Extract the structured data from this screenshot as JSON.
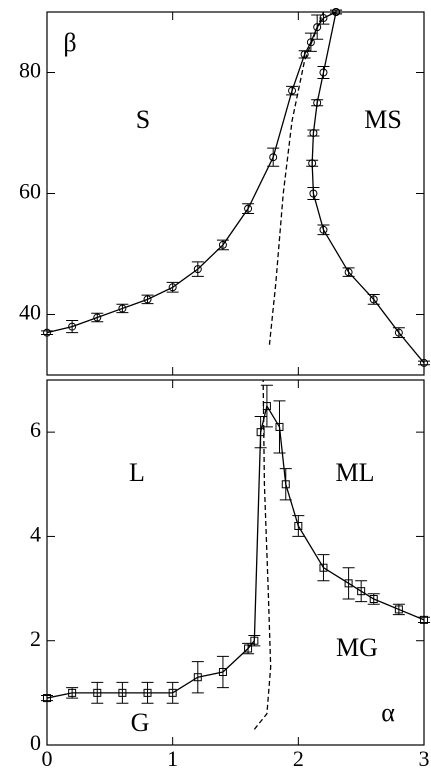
{
  "chart_data": [
    {
      "type": "line",
      "xlim": [
        0,
        3
      ],
      "ylim": [
        30,
        90
      ],
      "xticks": [
        0,
        1,
        2,
        3
      ],
      "yticks": [
        40,
        60,
        80
      ],
      "annotations": [
        "β",
        "S",
        "MS"
      ],
      "series": [
        {
          "color": "#000000",
          "marker": "circle",
          "linestyle": "solid",
          "x": [
            0,
            0.2,
            0.4,
            0.6,
            0.8,
            1.0,
            1.2,
            1.4,
            1.6,
            1.8,
            1.95,
            2.05,
            2.1,
            2.15,
            2.2,
            2.3
          ],
          "values": [
            37,
            38,
            39.5,
            41,
            42.5,
            44.5,
            47.5,
            51.5,
            57.5,
            66,
            77,
            83,
            85,
            87.5,
            89,
            90
          ],
          "errors": [
            0.3,
            1,
            0.7,
            0.7,
            0.7,
            0.8,
            1.2,
            0.8,
            0.8,
            1.5,
            0.7,
            0.6,
            1.5,
            2,
            1,
            0.3
          ]
        },
        {
          "color": "#000000",
          "marker": "circle",
          "linestyle": "solid",
          "x": [
            2.3,
            2.2,
            2.15,
            2.12,
            2.11,
            2.12,
            2.2,
            2.4,
            2.6,
            2.8,
            3.0
          ],
          "values": [
            90,
            80,
            75,
            70,
            65,
            60,
            54,
            47,
            42.5,
            37,
            32
          ],
          "errors": [
            0.3,
            1,
            0.5,
            0.5,
            0.5,
            1,
            0.8,
            0.7,
            0.8,
            0.8,
            0.3
          ]
        },
        {
          "color": "#000000",
          "marker": "none",
          "linestyle": "dashed",
          "x": [
            1.77,
            1.82,
            1.88,
            1.95,
            2.05,
            2.2
          ],
          "values": [
            35,
            45,
            60,
            72,
            82,
            90
          ]
        }
      ]
    },
    {
      "type": "line",
      "xlim": [
        0,
        3
      ],
      "ylim": [
        0,
        7
      ],
      "xticks": [
        0,
        1,
        2,
        3
      ],
      "yticks": [
        0,
        2,
        4,
        6
      ],
      "annotations": [
        "L",
        "ML",
        "MG",
        "G",
        "α"
      ],
      "series": [
        {
          "color": "#000000",
          "marker": "square",
          "linestyle": "solid",
          "x": [
            0,
            0.2,
            0.4,
            0.6,
            0.8,
            1.0,
            1.2,
            1.4,
            1.6,
            1.65,
            1.7,
            1.75,
            1.85,
            1.9,
            2.0,
            2.2,
            2.4,
            2.5,
            2.6,
            2.8,
            3.0
          ],
          "values": [
            0.9,
            1.0,
            1.0,
            1.0,
            1.0,
            1.0,
            1.3,
            1.4,
            1.85,
            2.0,
            6.0,
            6.5,
            6.1,
            5.0,
            4.2,
            3.4,
            3.1,
            2.95,
            2.8,
            2.6,
            2.4
          ],
          "errors": [
            0.05,
            0.1,
            0.2,
            0.2,
            0.2,
            0.2,
            0.3,
            0.3,
            0.1,
            0.1,
            0.3,
            0.4,
            0.5,
            0.3,
            0.2,
            0.25,
            0.3,
            0.2,
            0.1,
            0.1,
            0.05
          ]
        },
        {
          "color": "#000000",
          "marker": "none",
          "linestyle": "dashed",
          "x": [
            1.65,
            1.75,
            1.78,
            1.76,
            1.73,
            1.72
          ],
          "values": [
            0.3,
            0.6,
            1.5,
            3,
            5,
            7
          ]
        }
      ]
    }
  ]
}
